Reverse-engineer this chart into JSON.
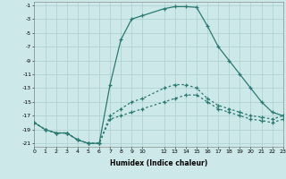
{
  "xlabel": "Humidex (Indice chaleur)",
  "bg_color": "#cce8e8",
  "grid_color": "#aacfcf",
  "line_color": "#2a7a72",
  "curve1_x": [
    0,
    1,
    2,
    3,
    4,
    5,
    6,
    7,
    8,
    9,
    10,
    12,
    13,
    14,
    15,
    16,
    17,
    18,
    19,
    20,
    21,
    22,
    23
  ],
  "curve1_y": [
    -18,
    -19,
    -19.5,
    -19.5,
    -20.5,
    -21,
    -21,
    -12.5,
    -6,
    -3,
    -2.5,
    -1.5,
    -1.2,
    -1.2,
    -1.3,
    -4,
    -7,
    -9,
    -11,
    -13,
    -15,
    -16.5,
    -17
  ],
  "curve2_x": [
    0,
    1,
    2,
    3,
    4,
    5,
    6,
    7,
    8,
    9,
    10,
    12,
    13,
    14,
    15,
    16,
    17,
    18,
    19,
    20,
    21,
    22,
    23
  ],
  "curve2_y": [
    -18,
    -19,
    -19.5,
    -19.5,
    -20.5,
    -21,
    -21,
    -17,
    -16,
    -15,
    -14.5,
    -13,
    -12.5,
    -12.5,
    -13,
    -14.5,
    -15.5,
    -16,
    -16.5,
    -17,
    -17.2,
    -17.5,
    -17
  ],
  "curve3_x": [
    0,
    1,
    2,
    3,
    4,
    5,
    6,
    7,
    8,
    9,
    10,
    12,
    13,
    14,
    15,
    16,
    17,
    18,
    19,
    20,
    21,
    22,
    23
  ],
  "curve3_y": [
    -18,
    -19,
    -19.5,
    -19.5,
    -20.5,
    -21,
    -21,
    -17.5,
    -17,
    -16.5,
    -16,
    -15,
    -14.5,
    -14,
    -14,
    -15,
    -16,
    -16.5,
    -17,
    -17.5,
    -17.7,
    -18,
    -17.5
  ],
  "xlim": [
    0,
    23
  ],
  "ylim": [
    -21,
    -1
  ],
  "yticks": [
    -1,
    -3,
    -5,
    -7,
    -9,
    -11,
    -13,
    -15,
    -17,
    -19,
    -21
  ],
  "xticks": [
    0,
    1,
    2,
    3,
    4,
    5,
    6,
    7,
    8,
    9,
    10,
    12,
    13,
    14,
    15,
    16,
    17,
    18,
    19,
    20,
    21,
    22,
    23
  ]
}
